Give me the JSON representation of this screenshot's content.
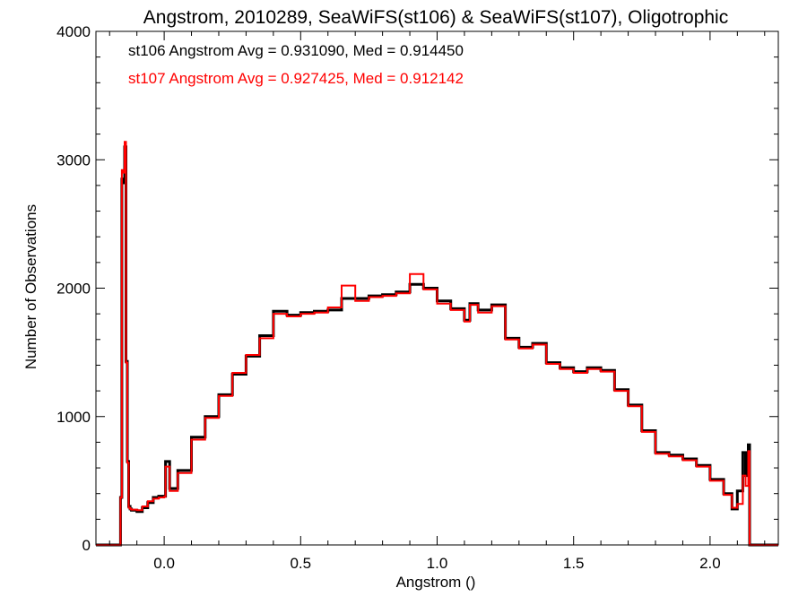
{
  "chart_data": {
    "type": "line",
    "title": "Angstrom, 2010289, SeaWiFS(st106) & SeaWiFS(st107), Oligotrophic",
    "xlabel": "Angstrom ()",
    "ylabel": "Number of Observations",
    "xlim": [
      -0.25,
      2.25
    ],
    "ylim": [
      0,
      4000
    ],
    "x_ticks": [
      0.0,
      0.5,
      1.0,
      1.5,
      2.0
    ],
    "x_tick_labels": [
      "0.0",
      "0.5",
      "1.0",
      "1.5",
      "2.0"
    ],
    "y_ticks": [
      0,
      1000,
      2000,
      3000,
      4000
    ],
    "y_tick_labels": [
      "0",
      "1000",
      "2000",
      "3000",
      "4000"
    ],
    "grid": false,
    "legend": [
      {
        "text": "st106 Angstrom Avg = 0.931090, Med = 0.914450",
        "color": "#000000"
      },
      {
        "text": "st107 Angstrom Avg = 0.927425, Med = 0.912142",
        "color": "#ff0000"
      }
    ],
    "series": [
      {
        "color": "#000000",
        "x": [
          -0.25,
          -0.16,
          -0.155,
          -0.15,
          -0.145,
          -0.14,
          -0.135,
          -0.13,
          -0.125,
          -0.12,
          -0.1,
          -0.08,
          -0.06,
          -0.04,
          -0.02,
          0.0,
          0.005,
          0.02,
          0.05,
          0.1,
          0.15,
          0.2,
          0.25,
          0.3,
          0.35,
          0.4,
          0.45,
          0.5,
          0.55,
          0.6,
          0.65,
          0.7,
          0.75,
          0.8,
          0.85,
          0.9,
          0.95,
          1.0,
          1.05,
          1.1,
          1.12,
          1.15,
          1.2,
          1.25,
          1.3,
          1.35,
          1.4,
          1.45,
          1.5,
          1.55,
          1.6,
          1.65,
          1.7,
          1.75,
          1.8,
          1.85,
          1.9,
          1.95,
          2.0,
          2.05,
          2.08,
          2.1,
          2.12,
          2.13,
          2.14,
          2.145,
          2.25
        ],
        "y": [
          0,
          370,
          2850,
          2820,
          3100,
          1430,
          650,
          300,
          280,
          270,
          260,
          290,
          330,
          370,
          380,
          380,
          650,
          440,
          580,
          840,
          1000,
          1170,
          1330,
          1470,
          1630,
          1820,
          1790,
          1810,
          1820,
          1830,
          1920,
          1920,
          1940,
          1950,
          1970,
          2030,
          2000,
          1900,
          1840,
          1750,
          1880,
          1830,
          1870,
          1610,
          1540,
          1570,
          1420,
          1380,
          1350,
          1380,
          1360,
          1210,
          1090,
          890,
          720,
          700,
          670,
          620,
          510,
          400,
          280,
          420,
          720,
          540,
          780,
          0,
          0
        ]
      },
      {
        "color": "#ff0000",
        "x": [
          -0.25,
          -0.16,
          -0.155,
          -0.15,
          -0.145,
          -0.14,
          -0.135,
          -0.13,
          -0.125,
          -0.12,
          -0.1,
          -0.08,
          -0.06,
          -0.04,
          -0.02,
          0.0,
          0.005,
          0.02,
          0.05,
          0.1,
          0.15,
          0.2,
          0.25,
          0.3,
          0.35,
          0.4,
          0.45,
          0.5,
          0.55,
          0.6,
          0.65,
          0.7,
          0.75,
          0.8,
          0.85,
          0.9,
          0.95,
          1.0,
          1.05,
          1.1,
          1.12,
          1.15,
          1.2,
          1.25,
          1.3,
          1.35,
          1.4,
          1.45,
          1.5,
          1.55,
          1.6,
          1.65,
          1.7,
          1.75,
          1.8,
          1.85,
          1.9,
          1.95,
          2.0,
          2.05,
          2.08,
          2.1,
          2.12,
          2.13,
          2.14,
          2.145,
          2.25
        ],
        "y": [
          0,
          370,
          2920,
          2900,
          3140,
          1420,
          640,
          290,
          280,
          275,
          270,
          300,
          340,
          360,
          370,
          375,
          610,
          420,
          560,
          820,
          990,
          1160,
          1340,
          1480,
          1610,
          1800,
          1780,
          1800,
          1810,
          1850,
          2020,
          1900,
          1930,
          1940,
          1960,
          2110,
          1990,
          1880,
          1830,
          1740,
          1870,
          1810,
          1860,
          1600,
          1530,
          1560,
          1410,
          1370,
          1340,
          1370,
          1350,
          1200,
          1080,
          880,
          710,
          690,
          660,
          610,
          500,
          390,
          290,
          320,
          540,
          460,
          730,
          0,
          0
        ]
      }
    ]
  }
}
